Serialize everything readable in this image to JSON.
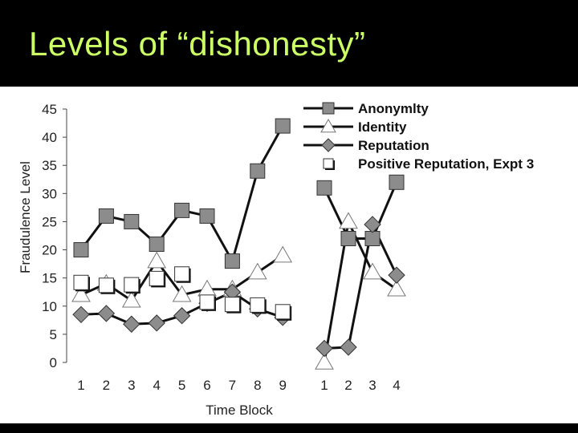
{
  "slide": {
    "title": "Levels of “dishonesty”"
  },
  "colors": {
    "background": "#000000",
    "title": "#CCFF66",
    "panel": "#ffffff",
    "line": "#111111",
    "marker_gray": "#8c8c8c"
  },
  "chart_data": {
    "type": "line",
    "title": "",
    "xlabel": "Time Block",
    "ylabel": "Fraudulence Level",
    "ylim": [
      0,
      45
    ],
    "yticks": [
      0,
      5,
      10,
      15,
      20,
      25,
      30,
      35,
      40,
      45
    ],
    "grid": false,
    "legend_position": "top-right",
    "phases": [
      {
        "categories": [
          "1",
          "2",
          "3",
          "4",
          "5",
          "6",
          "7",
          "8",
          "9"
        ]
      },
      {
        "categories": [
          "1",
          "2",
          "3",
          "4"
        ]
      }
    ],
    "series": [
      {
        "name": "Anonymity",
        "legend_label": "Anonymlty",
        "marker": "square",
        "fill": "gray",
        "line": true,
        "phase_values": [
          [
            20,
            26,
            25,
            21,
            27,
            26,
            18,
            34,
            42
          ],
          [
            31,
            22,
            22,
            32
          ]
        ]
      },
      {
        "name": "Identity",
        "legend_label": "Identity",
        "marker": "triangle",
        "fill": "white",
        "line": true,
        "phase_values": [
          [
            12,
            14,
            11,
            18,
            12,
            13,
            13,
            16,
            19
          ],
          [
            0,
            25,
            16,
            13
          ]
        ]
      },
      {
        "name": "Reputation",
        "legend_label": "Reputation",
        "marker": "diamond",
        "fill": "gray",
        "line": true,
        "phase_values": [
          [
            8.5,
            8.7,
            6.8,
            7.0,
            8.3,
            10.5,
            12.5,
            9.5,
            8.0
          ],
          [
            2.5,
            2.7,
            24.5,
            15.5
          ]
        ]
      },
      {
        "name": "Positive Reputation, Expt 3",
        "legend_label": "Positive Reputation, Expt 3",
        "marker": "square",
        "fill": "white",
        "line": false,
        "phase_values": [
          [
            14.2,
            13.7,
            13.8,
            14.9,
            15.7,
            10.7,
            10.3,
            10.2,
            9.0
          ],
          []
        ]
      }
    ]
  }
}
